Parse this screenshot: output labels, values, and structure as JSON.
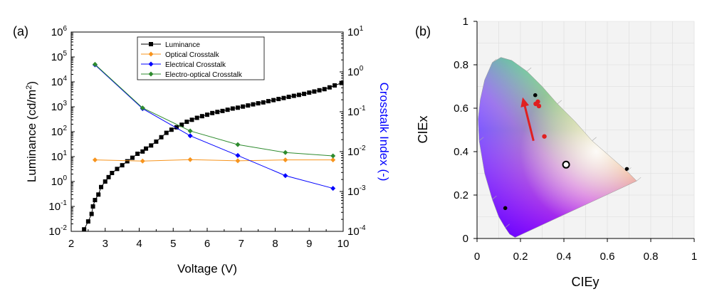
{
  "panel_a_label": "(a)",
  "panel_b_label": "(b)",
  "chart_data": [
    {
      "type": "scatter",
      "xlabel": "Voltage (V)",
      "ylabel_left": "Luminance (cd/m²)",
      "ylabel_right": "Crosstalk Index (-)",
      "xlim": [
        2,
        10
      ],
      "x_ticks": [
        "2",
        "3",
        "4",
        "5",
        "6",
        "7",
        "8",
        "9",
        "10"
      ],
      "ylim_left_log10": [
        -2,
        6
      ],
      "ylim_right_log10": [
        -4,
        1
      ],
      "y_left_scale": "log",
      "y_right_scale": "log",
      "legend_position": "top-center",
      "series": [
        {
          "name": "Luminance",
          "axis": "left",
          "color": "#000000",
          "marker": "square",
          "x": [
            2.38,
            2.5,
            2.6,
            2.64,
            2.7,
            2.8,
            2.88,
            3.0,
            3.1,
            3.2,
            3.35,
            3.5,
            3.65,
            3.8,
            3.95,
            4.1,
            4.2,
            4.35,
            4.5,
            4.65,
            4.8,
            4.95,
            5.1,
            5.25,
            5.4,
            5.55,
            5.7,
            5.85,
            6.0,
            6.15,
            6.3,
            6.45,
            6.6,
            6.75,
            6.9,
            7.05,
            7.2,
            7.35,
            7.5,
            7.65,
            7.8,
            7.95,
            8.1,
            8.25,
            8.4,
            8.55,
            8.7,
            8.85,
            9.0,
            9.15,
            9.3,
            9.45,
            9.6,
            9.75,
            9.95
          ],
          "y": [
            0.012,
            0.025,
            0.05,
            0.1,
            0.18,
            0.3,
            0.6,
            1.0,
            1.5,
            2.2,
            3.2,
            4.5,
            6.5,
            9,
            13,
            16,
            21,
            28,
            40,
            60,
            90,
            120,
            150,
            190,
            250,
            300,
            360,
            420,
            480,
            560,
            620,
            680,
            760,
            850,
            920,
            1020,
            1130,
            1250,
            1380,
            1500,
            1680,
            1850,
            2050,
            2250,
            2500,
            2750,
            3000,
            3300,
            3700,
            4100,
            4600,
            5100,
            6000,
            7200,
            9000
          ]
        },
        {
          "name": "Optical Crosstalk",
          "axis": "right",
          "color": "#F7941D",
          "marker": "diamond",
          "x": [
            2.7,
            4.1,
            5.5,
            6.9,
            8.3,
            9.7
          ],
          "y": [
            0.0062,
            0.0058,
            0.0063,
            0.0059,
            0.0062,
            0.0062
          ]
        },
        {
          "name": "Electrical Crosstalk",
          "axis": "right",
          "color": "#0000FF",
          "marker": "diamond",
          "x": [
            2.7,
            4.1,
            5.5,
            6.9,
            8.3,
            9.7
          ],
          "y": [
            1.5,
            0.12,
            0.025,
            0.008,
            0.0025,
            0.0012
          ]
        },
        {
          "name": "Electro-optical Crosstalk",
          "axis": "right",
          "color": "#2E8B2E",
          "marker": "diamond",
          "x": [
            2.7,
            4.1,
            5.5,
            6.9,
            8.3,
            9.7
          ],
          "y": [
            1.55,
            0.125,
            0.033,
            0.015,
            0.0095,
            0.0078
          ]
        }
      ]
    },
    {
      "type": "scatter",
      "xlabel": "CIEy",
      "ylabel": "CIEx",
      "xlim": [
        0,
        1
      ],
      "ylim": [
        0,
        1
      ],
      "x_ticks": [
        "0",
        "0.2",
        "0.4",
        "0.6",
        "0.8",
        "1"
      ],
      "y_ticks": [
        "0",
        "0.2",
        "0.4",
        "0.6",
        "0.8",
        "1"
      ],
      "grid": true,
      "background": "chromaticity-diagram",
      "points": [
        {
          "x": 0.268,
          "y": 0.66,
          "color": "#000000"
        },
        {
          "x": 0.13,
          "y": 0.14,
          "color": "#000000"
        },
        {
          "x": 0.69,
          "y": 0.32,
          "color": "#000000"
        },
        {
          "x": 0.41,
          "y": 0.34,
          "color": "#FFFFFF",
          "outline": "#000000"
        },
        {
          "x": 0.27,
          "y": 0.62,
          "color": "#E02020"
        },
        {
          "x": 0.285,
          "y": 0.61,
          "color": "#E02020"
        },
        {
          "x": 0.28,
          "y": 0.63,
          "color": "#E02020"
        },
        {
          "x": 0.31,
          "y": 0.47,
          "color": "#E02020"
        }
      ],
      "arrow": {
        "from": [
          0.26,
          0.45
        ],
        "to": [
          0.21,
          0.65
        ],
        "color": "#E02020"
      }
    }
  ]
}
